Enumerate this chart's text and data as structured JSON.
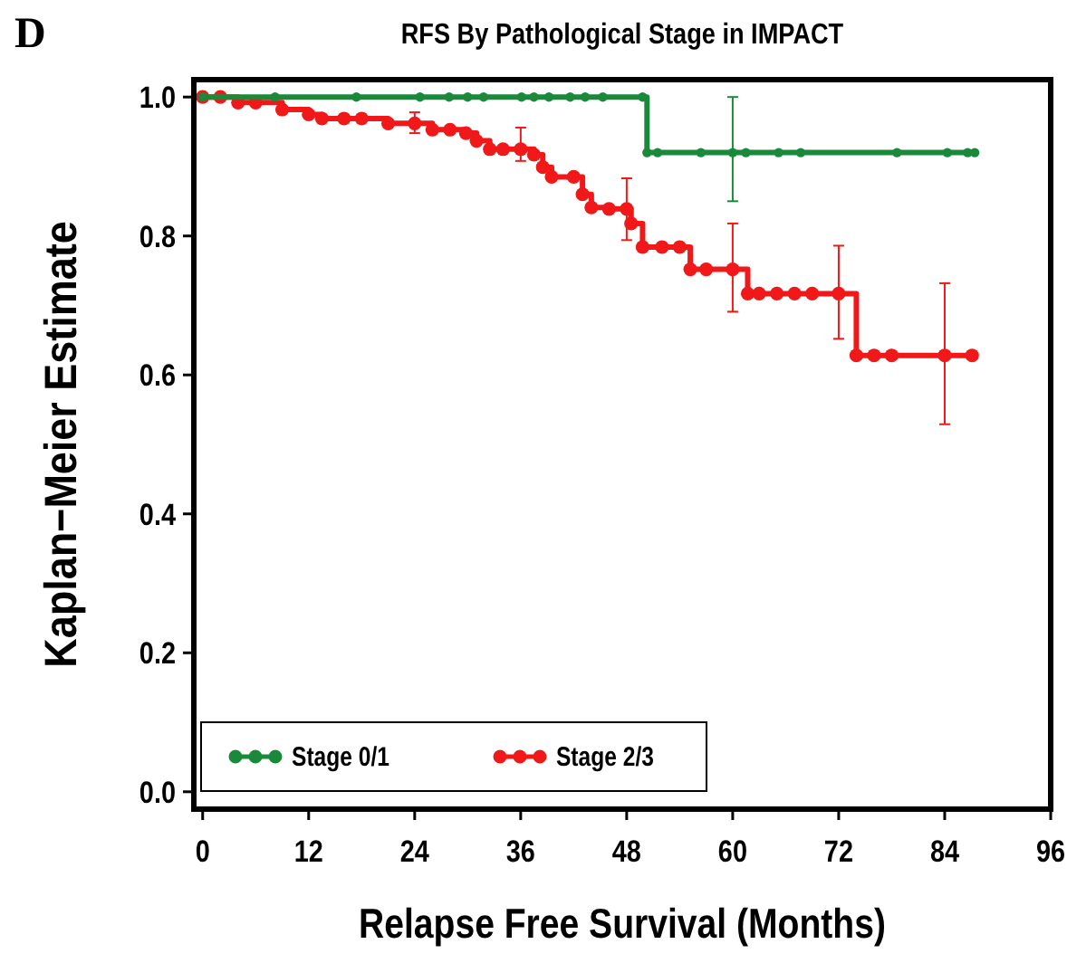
{
  "chart_data": {
    "type": "step",
    "title": "RFS By Pathological Stage in IMPACT",
    "xlabel": "Relapse Free Survival (Months)",
    "ylabel": "Kaplan−Meier Estimate",
    "annotations": [
      "D"
    ],
    "xlim": [
      -1,
      96
    ],
    "ylim": [
      -0.025,
      1.025
    ],
    "xticks": [
      0,
      12,
      24,
      36,
      48,
      60,
      72,
      84,
      96
    ],
    "yticks": [
      {
        "value": 0,
        "label": "0.0"
      },
      {
        "value": 0.2,
        "label": "0.2"
      },
      {
        "value": 0.4,
        "label": "0.4"
      },
      {
        "value": 0.6,
        "label": "0.6"
      },
      {
        "value": 0.8,
        "label": "0.8"
      },
      {
        "value": 1,
        "label": "1.0"
      }
    ],
    "grid": false,
    "legend": "bottom left",
    "marker": "circle",
    "line_style": "solid",
    "series": [
      {
        "name": "Stage 0/1",
        "color": "#1a8a3a",
        "x": [
          0,
          8.2,
          17.4,
          24.6,
          27.9,
          30,
          31.8,
          36.1,
          37.5,
          39.2,
          41.6,
          43.3,
          45.3,
          49.8,
          50.3,
          51.5,
          56.4,
          60,
          61.5,
          65.2,
          67.7,
          78.6,
          84.3,
          86.6,
          87.4
        ],
        "values": [
          1,
          1,
          1,
          1,
          1,
          1,
          1,
          1,
          1,
          1,
          1,
          1,
          1,
          1,
          0.92,
          0.92,
          0.92,
          0.92,
          0.92,
          0.92,
          0.92,
          0.92,
          0.92,
          0.92,
          0.92
        ],
        "errors": [
          null,
          null,
          null,
          null,
          null,
          null,
          null,
          null,
          null,
          null,
          null,
          null,
          null,
          null,
          null,
          null,
          null,
          [
            0.85,
            1.0
          ],
          null,
          null,
          null,
          null,
          null,
          null,
          null
        ]
      },
      {
        "name": "Stage 2/3",
        "color": "#f01818",
        "x": [
          0,
          2,
          4,
          6,
          9,
          12,
          13.5,
          16,
          18,
          21,
          24,
          26,
          28,
          29.8,
          31,
          32.5,
          34,
          36,
          37.5,
          38.5,
          39.5,
          42,
          43,
          44,
          46,
          48,
          48.5,
          49.8,
          52,
          54,
          55.2,
          57,
          60,
          61.7,
          63,
          65,
          67,
          69,
          72,
          74,
          76,
          78,
          84,
          87.1
        ],
        "values": [
          1,
          1,
          0.992,
          0.992,
          0.982,
          0.975,
          0.969,
          0.969,
          0.969,
          0.962,
          0.962,
          0.953,
          0.953,
          0.948,
          0.937,
          0.925,
          0.925,
          0.925,
          0.917,
          0.899,
          0.885,
          0.885,
          0.86,
          0.841,
          0.839,
          0.839,
          0.818,
          0.784,
          0.784,
          0.784,
          0.752,
          0.752,
          0.752,
          0.717,
          0.717,
          0.717,
          0.717,
          0.717,
          0.717,
          0.628,
          0.628,
          0.628,
          0.628,
          0.628
        ],
        "errors": [
          null,
          null,
          null,
          null,
          null,
          null,
          null,
          null,
          null,
          null,
          [
            0.948,
            0.978
          ],
          null,
          null,
          null,
          null,
          null,
          null,
          [
            0.908,
            0.956
          ],
          null,
          null,
          null,
          null,
          null,
          null,
          null,
          [
            0.794,
            0.883
          ],
          null,
          null,
          null,
          null,
          null,
          null,
          [
            0.691,
            0.818
          ],
          null,
          null,
          null,
          null,
          null,
          [
            0.652,
            0.786
          ],
          null,
          null,
          null,
          [
            0.529,
            0.732
          ],
          null
        ]
      }
    ]
  }
}
